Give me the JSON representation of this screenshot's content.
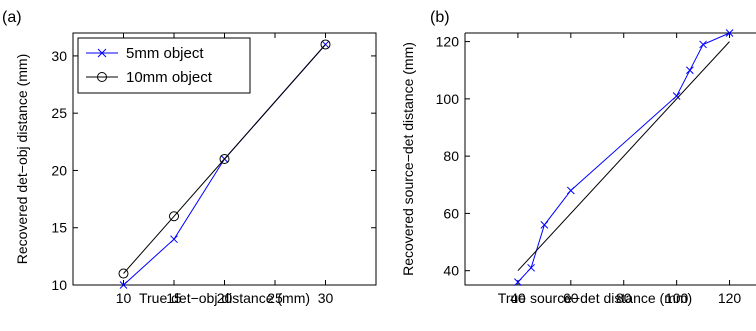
{
  "chart_data": [
    {
      "type": "line",
      "panel_label": "(a)",
      "xlabel": "True det−obj distance (mm)",
      "ylabel": "Recovered det−obj distance (mm)",
      "xlim": [
        5,
        35
      ],
      "ylim": [
        10,
        32
      ],
      "xticks": [
        10,
        15,
        20,
        25,
        30
      ],
      "yticks": [
        10,
        15,
        20,
        25,
        30
      ],
      "grid": false,
      "legend_position": "top-left",
      "series": [
        {
          "name": "5mm object",
          "marker": "x",
          "color": "#0000ff",
          "x": [
            10,
            15,
            20,
            30
          ],
          "y": [
            10,
            14,
            21,
            31
          ]
        },
        {
          "name": "10mm object",
          "marker": "o",
          "color": "#000000",
          "x": [
            10,
            15,
            20,
            30
          ],
          "y": [
            11,
            16,
            21,
            31
          ]
        }
      ]
    },
    {
      "type": "line",
      "panel_label": "(b)",
      "xlabel": "True source−det distance (mm)",
      "ylabel": "Recovered source−det distance (mm)",
      "xlim": [
        20,
        130
      ],
      "ylim": [
        35,
        123
      ],
      "xticks": [
        40,
        60,
        80,
        100,
        120
      ],
      "yticks": [
        40,
        60,
        80,
        100,
        120
      ],
      "grid": false,
      "series": [
        {
          "marker": "x",
          "color": "#0000ff",
          "x": [
            40,
            45,
            50,
            60,
            100,
            105,
            110,
            120
          ],
          "y": [
            36,
            41,
            56,
            68,
            101,
            110,
            119,
            123
          ]
        },
        {
          "marker": "none",
          "color": "#000000",
          "x": [
            40,
            120
          ],
          "y": [
            40,
            120
          ]
        }
      ]
    }
  ]
}
